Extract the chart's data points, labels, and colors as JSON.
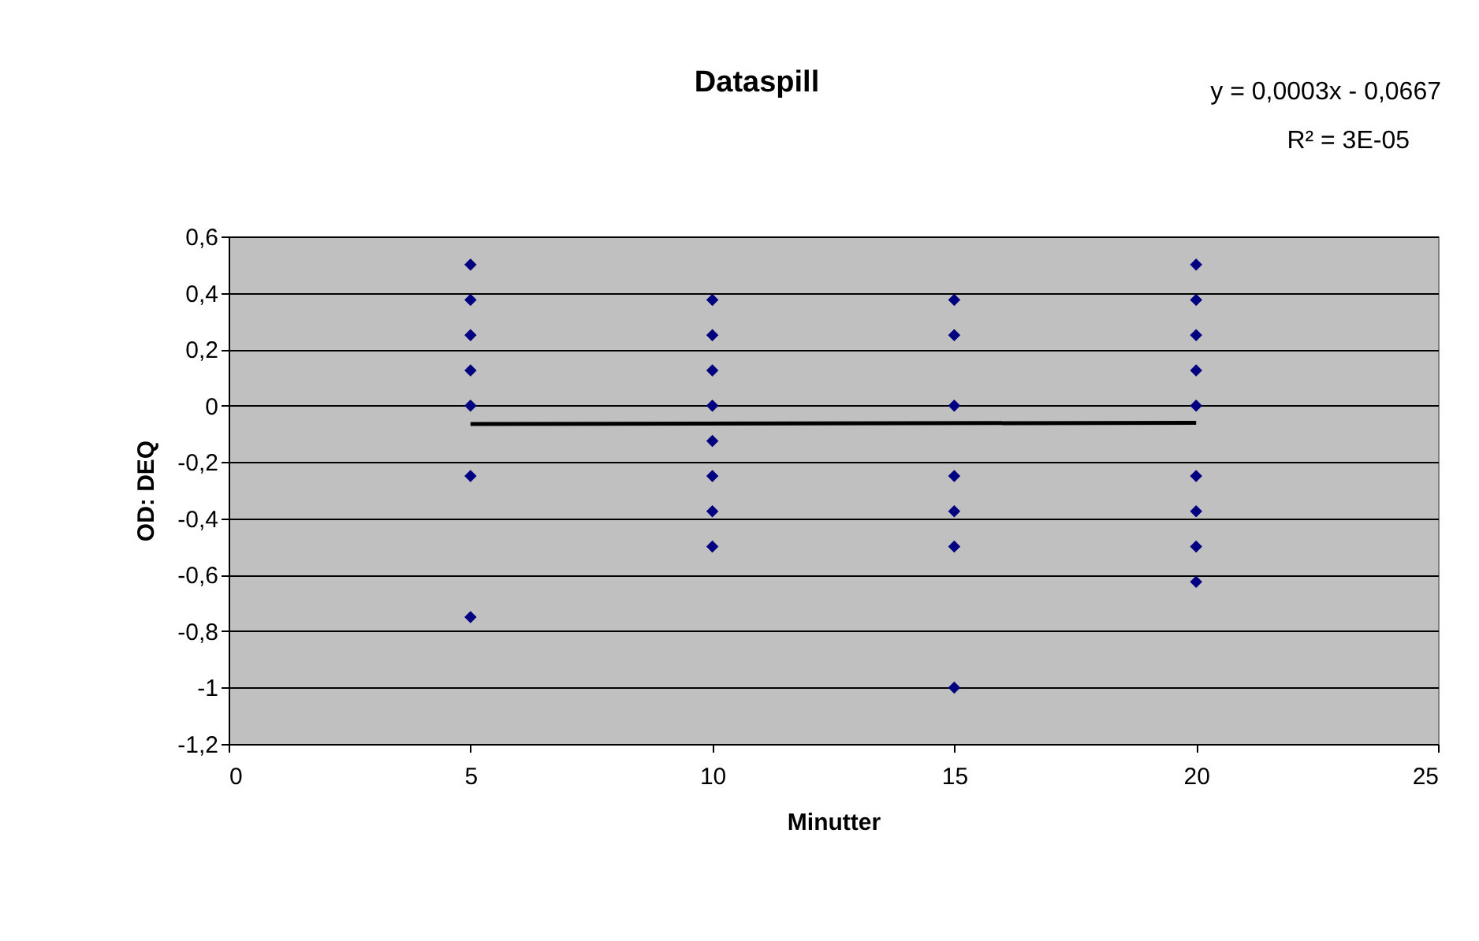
{
  "chart_data": {
    "type": "scatter",
    "title": "Dataspill",
    "xlabel": "Minutter",
    "ylabel": "OD: DEQ",
    "annotations": [
      "y = 0,0003x - 0,0667",
      "R² = 3E-05"
    ],
    "series": [
      {
        "type": "scatter",
        "color": "#000080",
        "marker": "diamond",
        "x": [
          5,
          5,
          5,
          5,
          5,
          5,
          5,
          10,
          10,
          10,
          10,
          10,
          10,
          10,
          10,
          15,
          15,
          15,
          15,
          15,
          15,
          15,
          20,
          20,
          20,
          20,
          20,
          20,
          20,
          20,
          20
        ],
        "values": [
          0.5,
          0.375,
          0.25,
          0.125,
          0,
          -0.25,
          -0.75,
          0.375,
          0.25,
          0.125,
          0,
          -0.125,
          -0.25,
          -0.375,
          -0.5,
          0.375,
          0.25,
          0,
          -0.25,
          -0.375,
          -0.5,
          -1,
          0.5,
          0.375,
          0.25,
          0.125,
          0,
          -0.25,
          -0.375,
          -0.5,
          -0.625
        ]
      },
      {
        "type": "line",
        "color": "#000000",
        "marker": "none",
        "line_style": "solid",
        "x": [
          5,
          20
        ],
        "values": [
          -0.065,
          -0.061
        ]
      }
    ],
    "xlim": [
      0,
      25
    ],
    "xticks": [
      0,
      5,
      10,
      15,
      20,
      25
    ],
    "ylim": [
      -1.2,
      0.6
    ],
    "yticks": [
      {
        "value": -1.2,
        "label": "-1,2"
      },
      {
        "value": -1,
        "label": "-1"
      },
      {
        "value": -0.8,
        "label": "-0,8"
      },
      {
        "value": -0.6,
        "label": "-0,6"
      },
      {
        "value": -0.4,
        "label": "-0,4"
      },
      {
        "value": -0.2,
        "label": "-0,2"
      },
      {
        "value": 0,
        "label": "0"
      },
      {
        "value": 0.2,
        "label": "0,2"
      },
      {
        "value": 0.4,
        "label": "0,4"
      },
      {
        "value": 0.6,
        "label": "0,6"
      }
    ],
    "grid": "y"
  }
}
